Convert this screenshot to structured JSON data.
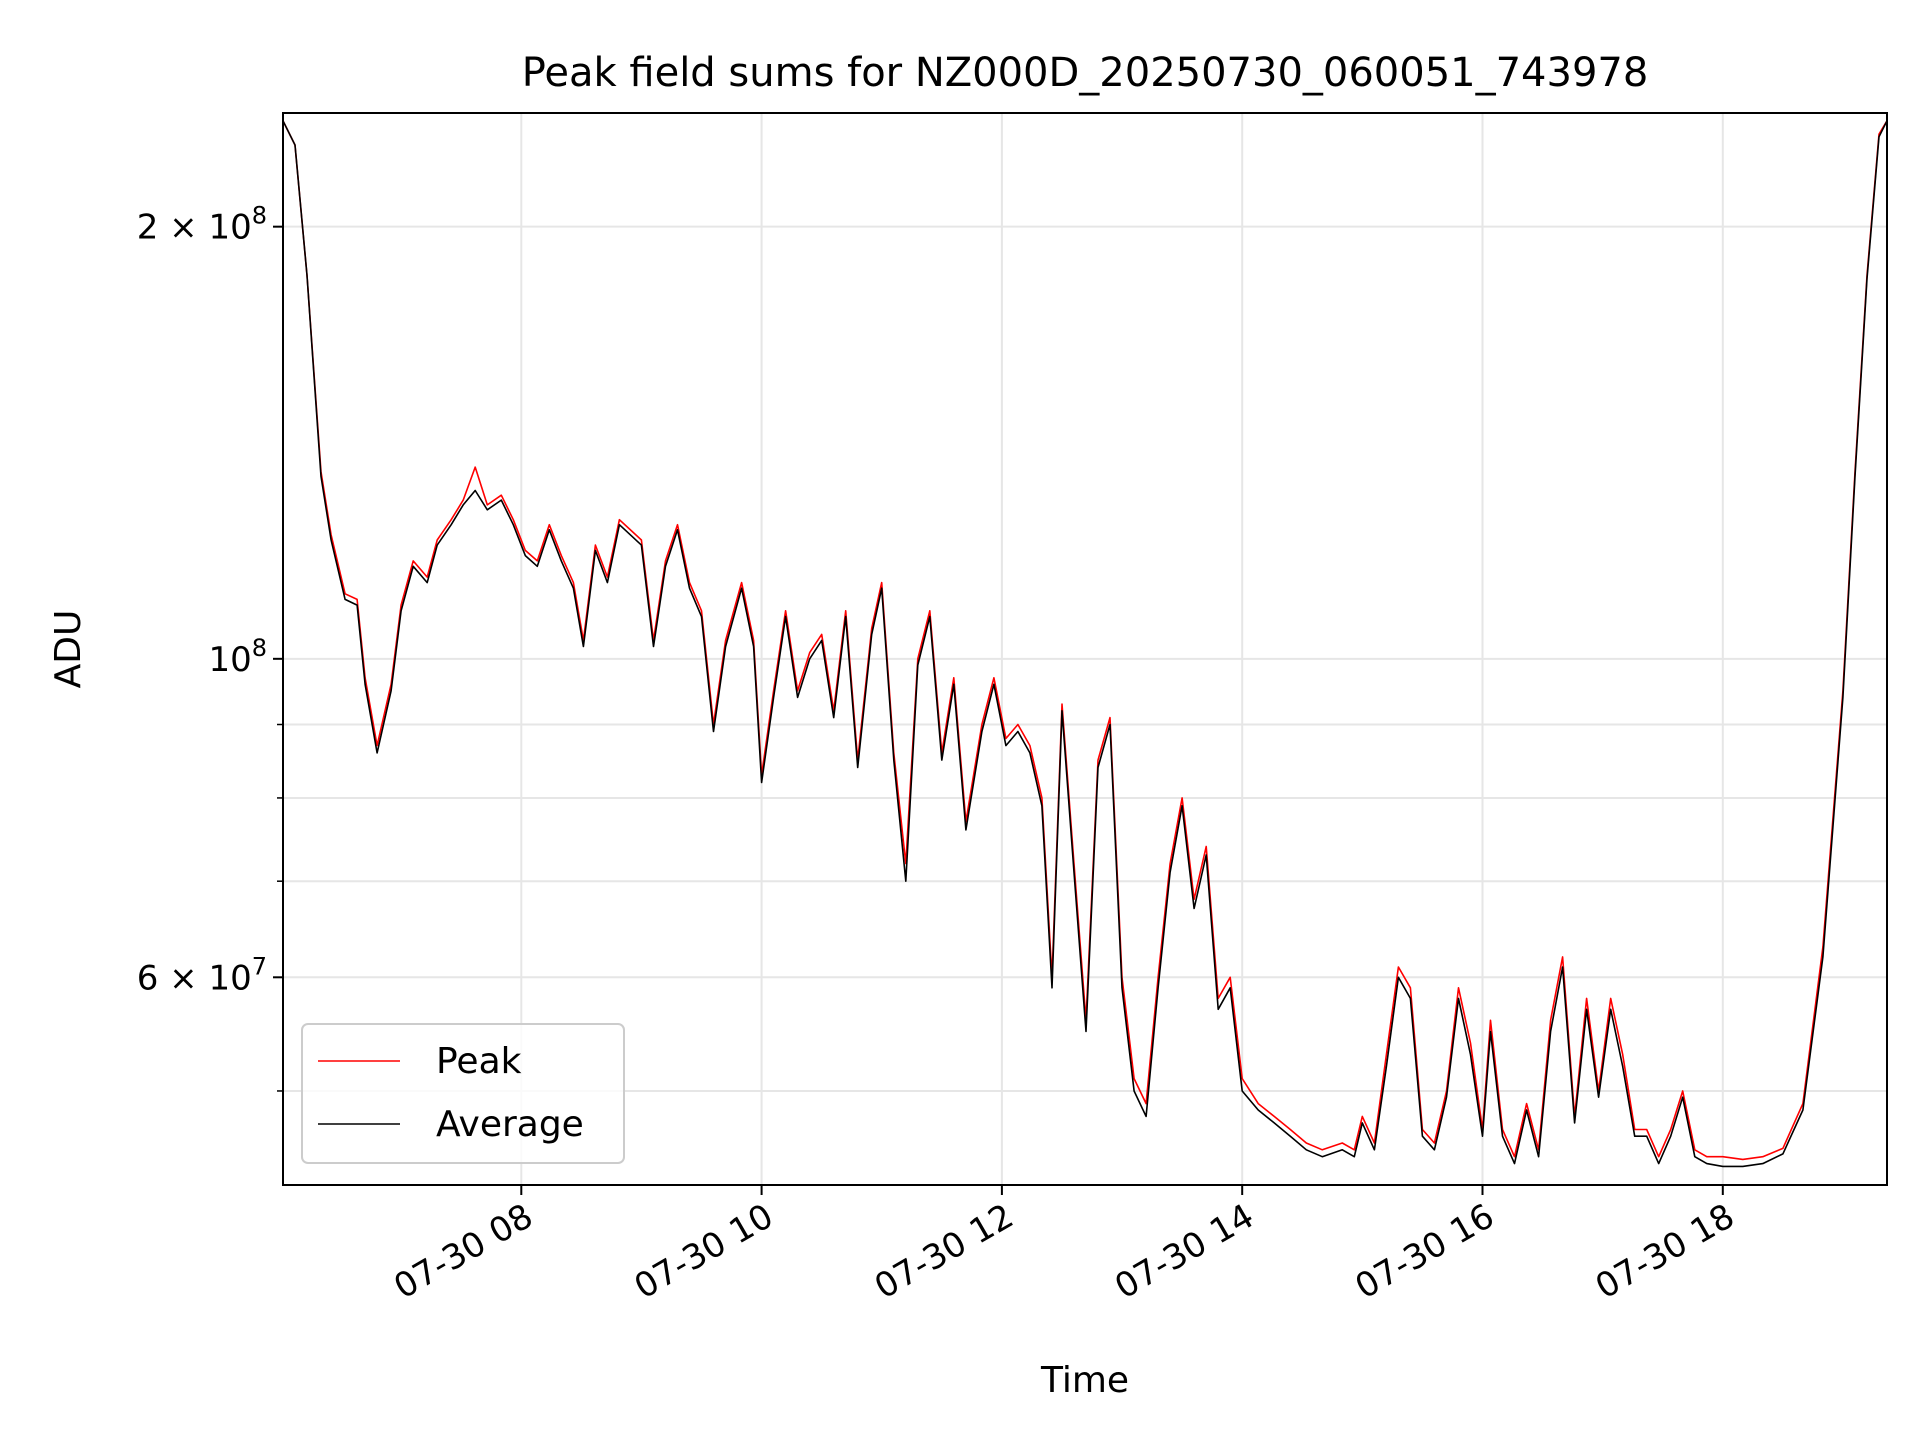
{
  "chart_data": {
    "type": "line",
    "title": "Peak field sums for NZ000D_20250730_060051_743978",
    "xlabel": "Time",
    "ylabel": "ADU",
    "y_scale": "log",
    "ylim": [
      43000000,
      240000000
    ],
    "xlim": [
      "07-30 06:01",
      "07-30 19:22"
    ],
    "grid": true,
    "legend_position": "lower-left",
    "x_ticks": [
      "07-30 08",
      "07-30 10",
      "07-30 12",
      "07-30 14",
      "07-30 16",
      "07-30 18"
    ],
    "x_tick_hours": [
      8,
      10,
      12,
      14,
      16,
      18
    ],
    "y_ticks_major": [
      {
        "value": 200000000,
        "mantissa": "2",
        "exp": "8"
      },
      {
        "value": 100000000,
        "mantissa": "",
        "exp": "8"
      },
      {
        "value": 60000000,
        "mantissa": "6",
        "exp": "7"
      }
    ],
    "y_ticks_minor": [
      50000000,
      70000000,
      80000000,
      90000000
    ],
    "series": [
      {
        "name": "Peak",
        "color": "#ff0000",
        "points": [
          [
            "07-30 06:01",
            237000000
          ],
          [
            "07-30 06:07",
            228000000
          ],
          [
            "07-30 06:13",
            185000000
          ],
          [
            "07-30 06:20",
            135000000
          ],
          [
            "07-30 06:25",
            122000000
          ],
          [
            "07-30 06:32",
            111000000
          ],
          [
            "07-30 06:38",
            110000000
          ],
          [
            "07-30 06:42",
            97000000
          ],
          [
            "07-30 06:48",
            87000000
          ],
          [
            "07-30 06:55",
            96000000
          ],
          [
            "07-30 07:00",
            109000000
          ],
          [
            "07-30 07:06",
            117000000
          ],
          [
            "07-30 07:13",
            114000000
          ],
          [
            "07-30 07:18",
            121000000
          ],
          [
            "07-30 07:25",
            125000000
          ],
          [
            "07-30 07:31",
            129000000
          ],
          [
            "07-30 07:37",
            136000000
          ],
          [
            "07-30 07:43",
            128000000
          ],
          [
            "07-30 07:50",
            130000000
          ],
          [
            "07-30 07:56",
            125000000
          ],
          [
            "07-30 08:02",
            119000000
          ],
          [
            "07-30 08:08",
            117000000
          ],
          [
            "07-30 08:14",
            124000000
          ],
          [
            "07-30 08:20",
            118000000
          ],
          [
            "07-30 08:26",
            113000000
          ],
          [
            "07-30 08:31",
            103000000
          ],
          [
            "07-30 08:37",
            120000000
          ],
          [
            "07-30 08:43",
            114000000
          ],
          [
            "07-30 08:49",
            125000000
          ],
          [
            "07-30 09:00",
            121000000
          ],
          [
            "07-30 09:06",
            103000000
          ],
          [
            "07-30 09:12",
            117000000
          ],
          [
            "07-30 09:18",
            124000000
          ],
          [
            "07-30 09:24",
            113000000
          ],
          [
            "07-30 09:30",
            108000000
          ],
          [
            "07-30 09:36",
            90000000
          ],
          [
            "07-30 09:42",
            103000000
          ],
          [
            "07-30 09:50",
            113000000
          ],
          [
            "07-30 09:56",
            103000000
          ],
          [
            "07-30 10:00",
            83000000
          ],
          [
            "07-30 10:06",
            95000000
          ],
          [
            "07-30 10:12",
            108000000
          ],
          [
            "07-30 10:18",
            95000000
          ],
          [
            "07-30 10:24",
            101000000
          ],
          [
            "07-30 10:30",
            104000000
          ],
          [
            "07-30 10:36",
            92000000
          ],
          [
            "07-30 10:42",
            108000000
          ],
          [
            "07-30 10:48",
            85000000
          ],
          [
            "07-30 10:55",
            105000000
          ],
          [
            "07-30 11:00",
            113000000
          ],
          [
            "07-30 11:06",
            86000000
          ],
          [
            "07-30 11:12",
            72000000
          ],
          [
            "07-30 11:18",
            100000000
          ],
          [
            "07-30 11:24",
            108000000
          ],
          [
            "07-30 11:30",
            86000000
          ],
          [
            "07-30 11:36",
            97000000
          ],
          [
            "07-30 11:42",
            77000000
          ],
          [
            "07-30 11:50",
            90000000
          ],
          [
            "07-30 11:56",
            97000000
          ],
          [
            "07-30 12:02",
            88000000
          ],
          [
            "07-30 12:08",
            90000000
          ],
          [
            "07-30 12:14",
            87000000
          ],
          [
            "07-30 12:20",
            80000000
          ],
          [
            "07-30 12:25",
            60000000
          ],
          [
            "07-30 12:30",
            93000000
          ],
          [
            "07-30 12:36",
            72000000
          ],
          [
            "07-30 12:42",
            56000000
          ],
          [
            "07-30 12:48",
            85000000
          ],
          [
            "07-30 12:54",
            91000000
          ],
          [
            "07-30 13:00",
            60000000
          ],
          [
            "07-30 13:06",
            51000000
          ],
          [
            "07-30 13:12",
            49000000
          ],
          [
            "07-30 13:18",
            60000000
          ],
          [
            "07-30 13:24",
            72000000
          ],
          [
            "07-30 13:30",
            80000000
          ],
          [
            "07-30 13:36",
            68000000
          ],
          [
            "07-30 13:42",
            74000000
          ],
          [
            "07-30 13:48",
            58000000
          ],
          [
            "07-30 13:54",
            60000000
          ],
          [
            "07-30 14:00",
            51000000
          ],
          [
            "07-30 14:08",
            49000000
          ],
          [
            "07-30 14:16",
            48000000
          ],
          [
            "07-30 14:24",
            47000000
          ],
          [
            "07-30 14:32",
            46000000
          ],
          [
            "07-30 14:40",
            45500000
          ],
          [
            "07-30 14:50",
            46000000
          ],
          [
            "07-30 14:56",
            45500000
          ],
          [
            "07-30 15:00",
            48000000
          ],
          [
            "07-30 15:06",
            46000000
          ],
          [
            "07-30 15:12",
            53000000
          ],
          [
            "07-30 15:18",
            61000000
          ],
          [
            "07-30 15:24",
            59000000
          ],
          [
            "07-30 15:30",
            47000000
          ],
          [
            "07-30 15:36",
            46000000
          ],
          [
            "07-30 15:42",
            50000000
          ],
          [
            "07-30 15:48",
            59000000
          ],
          [
            "07-30 15:54",
            54000000
          ],
          [
            "07-30 16:00",
            47000000
          ],
          [
            "07-30 16:04",
            56000000
          ],
          [
            "07-30 16:10",
            47000000
          ],
          [
            "07-30 16:16",
            45000000
          ],
          [
            "07-30 16:22",
            49000000
          ],
          [
            "07-30 16:28",
            45500000
          ],
          [
            "07-30 16:34",
            56000000
          ],
          [
            "07-30 16:40",
            62000000
          ],
          [
            "07-30 16:46",
            48000000
          ],
          [
            "07-30 16:52",
            58000000
          ],
          [
            "07-30 16:58",
            50000000
          ],
          [
            "07-30 17:04",
            58000000
          ],
          [
            "07-30 17:10",
            53000000
          ],
          [
            "07-30 17:16",
            47000000
          ],
          [
            "07-30 17:22",
            47000000
          ],
          [
            "07-30 17:28",
            45000000
          ],
          [
            "07-30 17:34",
            47000000
          ],
          [
            "07-30 17:40",
            50000000
          ],
          [
            "07-30 17:46",
            45500000
          ],
          [
            "07-30 17:52",
            45000000
          ],
          [
            "07-30 18:00",
            45000000
          ],
          [
            "07-30 18:10",
            44800000
          ],
          [
            "07-30 18:20",
            45000000
          ],
          [
            "07-30 18:30",
            45600000
          ],
          [
            "07-30 18:40",
            49000000
          ],
          [
            "07-30 18:50",
            63000000
          ],
          [
            "07-30 19:00",
            95000000
          ],
          [
            "07-30 19:06",
            135000000
          ],
          [
            "07-30 19:12",
            185000000
          ],
          [
            "07-30 19:18",
            232000000
          ],
          [
            "07-30 19:22",
            237000000
          ]
        ]
      },
      {
        "name": "Average",
        "color": "#000000",
        "points": [
          [
            "07-30 06:01",
            237000000
          ],
          [
            "07-30 06:07",
            228000000
          ],
          [
            "07-30 06:13",
            185000000
          ],
          [
            "07-30 06:20",
            134000000
          ],
          [
            "07-30 06:25",
            121000000
          ],
          [
            "07-30 06:32",
            110000000
          ],
          [
            "07-30 06:38",
            109000000
          ],
          [
            "07-30 06:42",
            96000000
          ],
          [
            "07-30 06:48",
            86000000
          ],
          [
            "07-30 06:55",
            95000000
          ],
          [
            "07-30 07:00",
            108000000
          ],
          [
            "07-30 07:06",
            116000000
          ],
          [
            "07-30 07:13",
            113000000
          ],
          [
            "07-30 07:18",
            120000000
          ],
          [
            "07-30 07:25",
            124000000
          ],
          [
            "07-30 07:31",
            128000000
          ],
          [
            "07-30 07:37",
            131000000
          ],
          [
            "07-30 07:43",
            127000000
          ],
          [
            "07-30 07:50",
            129000000
          ],
          [
            "07-30 07:56",
            124000000
          ],
          [
            "07-30 08:02",
            118000000
          ],
          [
            "07-30 08:08",
            116000000
          ],
          [
            "07-30 08:14",
            123000000
          ],
          [
            "07-30 08:20",
            117000000
          ],
          [
            "07-30 08:26",
            112000000
          ],
          [
            "07-30 08:31",
            102000000
          ],
          [
            "07-30 08:37",
            119000000
          ],
          [
            "07-30 08:43",
            113000000
          ],
          [
            "07-30 08:49",
            124000000
          ],
          [
            "07-30 09:00",
            120000000
          ],
          [
            "07-30 09:06",
            102000000
          ],
          [
            "07-30 09:12",
            116000000
          ],
          [
            "07-30 09:18",
            123000000
          ],
          [
            "07-30 09:24",
            112000000
          ],
          [
            "07-30 09:30",
            107000000
          ],
          [
            "07-30 09:36",
            89000000
          ],
          [
            "07-30 09:42",
            102000000
          ],
          [
            "07-30 09:50",
            112000000
          ],
          [
            "07-30 09:56",
            102000000
          ],
          [
            "07-30 10:00",
            82000000
          ],
          [
            "07-30 10:06",
            94000000
          ],
          [
            "07-30 10:12",
            107000000
          ],
          [
            "07-30 10:18",
            94000000
          ],
          [
            "07-30 10:24",
            100000000
          ],
          [
            "07-30 10:30",
            103000000
          ],
          [
            "07-30 10:36",
            91000000
          ],
          [
            "07-30 10:42",
            107000000
          ],
          [
            "07-30 10:48",
            84000000
          ],
          [
            "07-30 10:55",
            104000000
          ],
          [
            "07-30 11:00",
            112000000
          ],
          [
            "07-30 11:06",
            85000000
          ],
          [
            "07-30 11:12",
            70000000
          ],
          [
            "07-30 11:18",
            99000000
          ],
          [
            "07-30 11:24",
            107000000
          ],
          [
            "07-30 11:30",
            85000000
          ],
          [
            "07-30 11:36",
            96000000
          ],
          [
            "07-30 11:42",
            76000000
          ],
          [
            "07-30 11:50",
            89000000
          ],
          [
            "07-30 11:56",
            96000000
          ],
          [
            "07-30 12:02",
            87000000
          ],
          [
            "07-30 12:08",
            89000000
          ],
          [
            "07-30 12:14",
            86000000
          ],
          [
            "07-30 12:20",
            79000000
          ],
          [
            "07-30 12:25",
            59000000
          ],
          [
            "07-30 12:30",
            92000000
          ],
          [
            "07-30 12:36",
            71000000
          ],
          [
            "07-30 12:42",
            55000000
          ],
          [
            "07-30 12:48",
            84000000
          ],
          [
            "07-30 12:54",
            90000000
          ],
          [
            "07-30 13:00",
            59000000
          ],
          [
            "07-30 13:06",
            50000000
          ],
          [
            "07-30 13:12",
            48000000
          ],
          [
            "07-30 13:18",
            59000000
          ],
          [
            "07-30 13:24",
            71000000
          ],
          [
            "07-30 13:30",
            79000000
          ],
          [
            "07-30 13:36",
            67000000
          ],
          [
            "07-30 13:42",
            73000000
          ],
          [
            "07-30 13:48",
            57000000
          ],
          [
            "07-30 13:54",
            59000000
          ],
          [
            "07-30 14:00",
            50000000
          ],
          [
            "07-30 14:08",
            48500000
          ],
          [
            "07-30 14:16",
            47500000
          ],
          [
            "07-30 14:24",
            46500000
          ],
          [
            "07-30 14:32",
            45500000
          ],
          [
            "07-30 14:40",
            45000000
          ],
          [
            "07-30 14:50",
            45500000
          ],
          [
            "07-30 14:56",
            45000000
          ],
          [
            "07-30 15:00",
            47500000
          ],
          [
            "07-30 15:06",
            45500000
          ],
          [
            "07-30 15:12",
            52000000
          ],
          [
            "07-30 15:18",
            60000000
          ],
          [
            "07-30 15:24",
            58000000
          ],
          [
            "07-30 15:30",
            46500000
          ],
          [
            "07-30 15:36",
            45500000
          ],
          [
            "07-30 15:42",
            49500000
          ],
          [
            "07-30 15:48",
            58000000
          ],
          [
            "07-30 15:54",
            53000000
          ],
          [
            "07-30 16:00",
            46500000
          ],
          [
            "07-30 16:04",
            55000000
          ],
          [
            "07-30 16:10",
            46500000
          ],
          [
            "07-30 16:16",
            44500000
          ],
          [
            "07-30 16:22",
            48500000
          ],
          [
            "07-30 16:28",
            45000000
          ],
          [
            "07-30 16:34",
            55000000
          ],
          [
            "07-30 16:40",
            61000000
          ],
          [
            "07-30 16:46",
            47500000
          ],
          [
            "07-30 16:52",
            57000000
          ],
          [
            "07-30 16:58",
            49500000
          ],
          [
            "07-30 17:04",
            57000000
          ],
          [
            "07-30 17:10",
            52000000
          ],
          [
            "07-30 17:16",
            46500000
          ],
          [
            "07-30 17:22",
            46500000
          ],
          [
            "07-30 17:28",
            44500000
          ],
          [
            "07-30 17:34",
            46500000
          ],
          [
            "07-30 17:40",
            49500000
          ],
          [
            "07-30 17:46",
            45000000
          ],
          [
            "07-30 17:52",
            44500000
          ],
          [
            "07-30 18:00",
            44300000
          ],
          [
            "07-30 18:10",
            44300000
          ],
          [
            "07-30 18:20",
            44500000
          ],
          [
            "07-30 18:30",
            45200000
          ],
          [
            "07-30 18:40",
            48500000
          ],
          [
            "07-30 18:50",
            62000000
          ],
          [
            "07-30 19:00",
            94000000
          ],
          [
            "07-30 19:06",
            134000000
          ],
          [
            "07-30 19:12",
            184000000
          ],
          [
            "07-30 19:18",
            231000000
          ],
          [
            "07-30 19:22",
            237000000
          ]
        ]
      }
    ]
  }
}
